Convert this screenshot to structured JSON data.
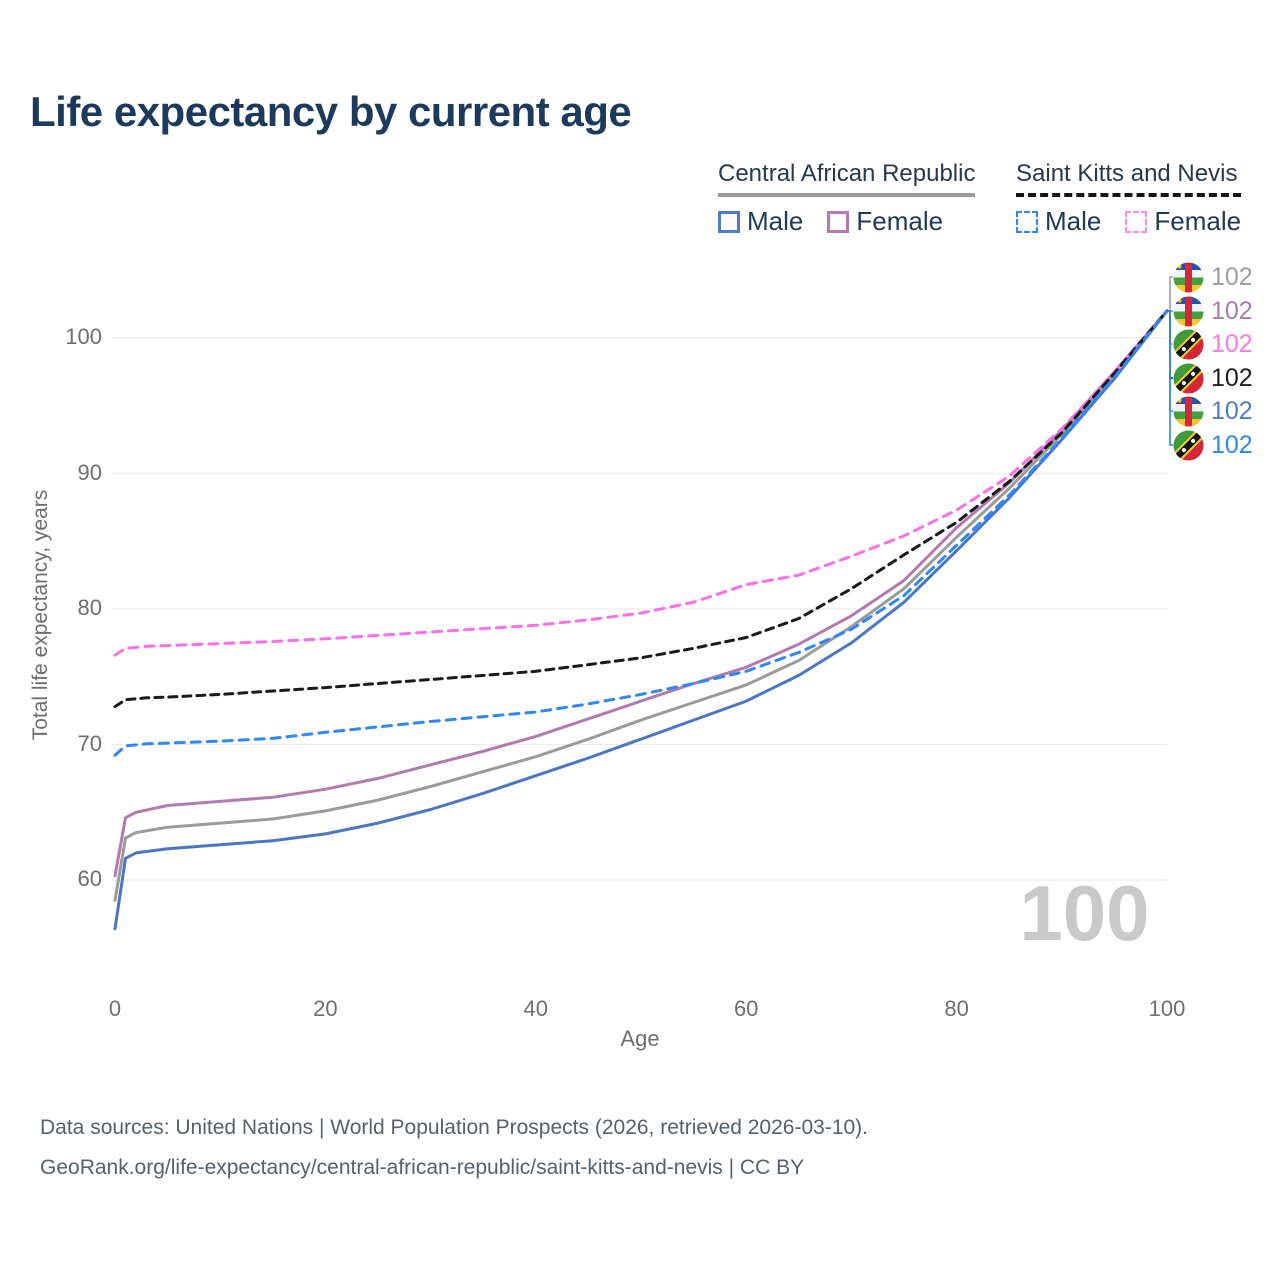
{
  "title": "Life expectancy by current age",
  "watermark": "100",
  "legend": {
    "groups": [
      {
        "label": "Central African Republic",
        "underline_style": "solid",
        "underline_color": "#9a9a9a",
        "items": [
          {
            "label": "Male",
            "color": "#4d7cc7",
            "dashed": false
          },
          {
            "label": "Female",
            "color": "#b279b2",
            "dashed": false
          }
        ]
      },
      {
        "label": "Saint Kitts and Nevis",
        "underline_style": "dashed",
        "underline_color": "#141414",
        "items": [
          {
            "label": "Male",
            "color": "#2f88f5",
            "dashed": true
          },
          {
            "label": "Female",
            "color": "#fa8aec",
            "dashed": true
          }
        ]
      }
    ]
  },
  "axes": {
    "x": {
      "label": "Age",
      "ticks": [
        0,
        20,
        40,
        60,
        80,
        100
      ]
    },
    "y": {
      "label": "Total life expectancy, years",
      "ticks": [
        60,
        70,
        80,
        90,
        100
      ]
    }
  },
  "end_labels": [
    {
      "flag": "car",
      "series": "car-average",
      "value": "102",
      "color": "#9e9e9e"
    },
    {
      "flag": "car",
      "series": "car-female",
      "value": "102",
      "color": "#a87bb0"
    },
    {
      "flag": "skn",
      "series": "skn-female",
      "value": "102",
      "color": "#f87ae4"
    },
    {
      "flag": "skn",
      "series": "skn-average",
      "value": "102",
      "color": "#1f1f1f"
    },
    {
      "flag": "car",
      "series": "car-male",
      "value": "102",
      "color": "#4d7cc7"
    },
    {
      "flag": "skn",
      "series": "skn-male",
      "value": "102",
      "color": "#2f88f5"
    }
  ],
  "footer": {
    "line1": "Data sources: United Nations | World Population Prospects (2026, retrieved 2026-03-10).",
    "line2": "GeoRank.org/life-expectancy/central-african-republic/saint-kitts-and-nevis | CC BY"
  },
  "chart_data": {
    "type": "line",
    "title": "Life expectancy by current age",
    "xlabel": "Age",
    "ylabel": "Total life expectancy, years",
    "xlim": [
      0,
      100
    ],
    "ylim": [
      55,
      104
    ],
    "x_ticks": [
      0,
      20,
      40,
      60,
      80,
      100
    ],
    "y_ticks": [
      60,
      70,
      80,
      90,
      100
    ],
    "grid": true,
    "legend_position": "top-right",
    "series": [
      {
        "id": "car-male",
        "name": "Central African Republic — Male",
        "country": "Central African Republic",
        "sex": "Male",
        "style": "solid",
        "color": "#4a77c4",
        "points": [
          [
            0,
            56.4
          ],
          [
            1,
            61.6
          ],
          [
            2,
            62.0
          ],
          [
            5,
            62.3
          ],
          [
            10,
            62.6
          ],
          [
            15,
            62.9
          ],
          [
            20,
            63.4
          ],
          [
            25,
            64.2
          ],
          [
            30,
            65.2
          ],
          [
            35,
            66.4
          ],
          [
            40,
            67.7
          ],
          [
            45,
            69.0
          ],
          [
            50,
            70.4
          ],
          [
            55,
            71.8
          ],
          [
            60,
            73.2
          ],
          [
            65,
            75.1
          ],
          [
            70,
            77.5
          ],
          [
            75,
            80.5
          ],
          [
            80,
            84.3
          ],
          [
            85,
            88.2
          ],
          [
            90,
            92.5
          ],
          [
            95,
            97.0
          ],
          [
            100,
            102
          ]
        ]
      },
      {
        "id": "car-average",
        "name": "Central African Republic — Both sexes",
        "country": "Central African Republic",
        "sex": "Both",
        "style": "solid",
        "color": "#9b9b9b",
        "points": [
          [
            0,
            58.5
          ],
          [
            1,
            63.1
          ],
          [
            2,
            63.5
          ],
          [
            5,
            63.9
          ],
          [
            10,
            64.2
          ],
          [
            15,
            64.5
          ],
          [
            20,
            65.1
          ],
          [
            25,
            65.9
          ],
          [
            30,
            66.9
          ],
          [
            35,
            68.0
          ],
          [
            40,
            69.1
          ],
          [
            45,
            70.4
          ],
          [
            50,
            71.8
          ],
          [
            55,
            73.1
          ],
          [
            60,
            74.4
          ],
          [
            65,
            76.2
          ],
          [
            70,
            78.7
          ],
          [
            75,
            81.5
          ],
          [
            80,
            85.3
          ],
          [
            85,
            88.9
          ],
          [
            90,
            92.9
          ],
          [
            95,
            97.3
          ],
          [
            100,
            102
          ]
        ]
      },
      {
        "id": "car-female",
        "name": "Central African Republic — Female",
        "country": "Central African Republic",
        "sex": "Female",
        "style": "solid",
        "color": "#b279b2",
        "points": [
          [
            0,
            60.3
          ],
          [
            1,
            64.6
          ],
          [
            2,
            65.0
          ],
          [
            5,
            65.5
          ],
          [
            10,
            65.8
          ],
          [
            15,
            66.1
          ],
          [
            20,
            66.7
          ],
          [
            25,
            67.5
          ],
          [
            30,
            68.5
          ],
          [
            35,
            69.5
          ],
          [
            40,
            70.6
          ],
          [
            45,
            71.9
          ],
          [
            50,
            73.2
          ],
          [
            55,
            74.5
          ],
          [
            60,
            75.7
          ],
          [
            65,
            77.4
          ],
          [
            70,
            79.5
          ],
          [
            75,
            82.1
          ],
          [
            80,
            86.0
          ],
          [
            85,
            89.3
          ],
          [
            90,
            93.2
          ],
          [
            95,
            97.5
          ],
          [
            100,
            102
          ]
        ]
      },
      {
        "id": "skn-male",
        "name": "Saint Kitts and Nevis — Male",
        "country": "Saint Kitts and Nevis",
        "sex": "Male",
        "style": "dashed",
        "color": "#2f88f5",
        "points": [
          [
            0,
            69.2
          ],
          [
            1,
            69.9
          ],
          [
            3,
            70.05
          ],
          [
            5,
            70.1
          ],
          [
            10,
            70.25
          ],
          [
            15,
            70.45
          ],
          [
            20,
            70.9
          ],
          [
            25,
            71.3
          ],
          [
            30,
            71.7
          ],
          [
            35,
            72.05
          ],
          [
            40,
            72.4
          ],
          [
            45,
            73.0
          ],
          [
            50,
            73.7
          ],
          [
            55,
            74.5
          ],
          [
            60,
            75.4
          ],
          [
            65,
            76.8
          ],
          [
            70,
            78.5
          ],
          [
            75,
            81.0
          ],
          [
            80,
            84.7
          ],
          [
            85,
            88.4
          ],
          [
            90,
            92.6
          ],
          [
            95,
            97.1
          ],
          [
            100,
            102
          ]
        ]
      },
      {
        "id": "skn-average",
        "name": "Saint Kitts and Nevis — Both sexes",
        "country": "Saint Kitts and Nevis",
        "sex": "Both",
        "style": "dashed",
        "color": "#1a1a1a",
        "points": [
          [
            0,
            72.8
          ],
          [
            1,
            73.3
          ],
          [
            3,
            73.45
          ],
          [
            5,
            73.5
          ],
          [
            10,
            73.7
          ],
          [
            15,
            73.95
          ],
          [
            20,
            74.2
          ],
          [
            25,
            74.5
          ],
          [
            30,
            74.8
          ],
          [
            35,
            75.1
          ],
          [
            40,
            75.4
          ],
          [
            45,
            75.9
          ],
          [
            50,
            76.4
          ],
          [
            55,
            77.1
          ],
          [
            60,
            77.9
          ],
          [
            65,
            79.3
          ],
          [
            70,
            81.5
          ],
          [
            75,
            84.0
          ],
          [
            80,
            86.4
          ],
          [
            85,
            89.4
          ],
          [
            90,
            93.0
          ],
          [
            95,
            97.4
          ],
          [
            100,
            102
          ]
        ]
      },
      {
        "id": "skn-female",
        "name": "Saint Kitts and Nevis — Female",
        "country": "Saint Kitts and Nevis",
        "sex": "Female",
        "style": "dashed",
        "color": "#fb6fe8",
        "points": [
          [
            0,
            76.6
          ],
          [
            1,
            77.1
          ],
          [
            3,
            77.25
          ],
          [
            5,
            77.3
          ],
          [
            10,
            77.45
          ],
          [
            15,
            77.6
          ],
          [
            20,
            77.8
          ],
          [
            25,
            78.05
          ],
          [
            30,
            78.3
          ],
          [
            35,
            78.55
          ],
          [
            40,
            78.8
          ],
          [
            45,
            79.2
          ],
          [
            50,
            79.7
          ],
          [
            55,
            80.5
          ],
          [
            60,
            81.8
          ],
          [
            65,
            82.5
          ],
          [
            70,
            83.9
          ],
          [
            75,
            85.4
          ],
          [
            80,
            87.3
          ],
          [
            85,
            89.8
          ],
          [
            90,
            93.3
          ],
          [
            95,
            97.5
          ],
          [
            100,
            102
          ]
        ]
      }
    ]
  }
}
